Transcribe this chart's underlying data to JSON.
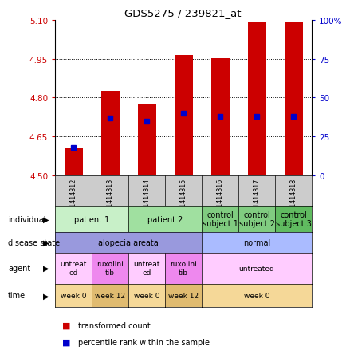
{
  "title": "GDS5275 / 239821_at",
  "samples": [
    "GSM1414312",
    "GSM1414313",
    "GSM1414314",
    "GSM1414315",
    "GSM1414316",
    "GSM1414317",
    "GSM1414318"
  ],
  "bar_values": [
    4.605,
    4.825,
    4.775,
    4.965,
    4.952,
    5.09,
    5.09
  ],
  "percentile_values": [
    18,
    37,
    35,
    40,
    38,
    38,
    38
  ],
  "ylim_left": [
    4.5,
    5.1
  ],
  "ylim_right": [
    0,
    100
  ],
  "yticks_left": [
    4.5,
    4.65,
    4.8,
    4.95,
    5.1
  ],
  "yticks_right": [
    0,
    25,
    50,
    75,
    100
  ],
  "ytick_right_labels": [
    "0",
    "25",
    "50",
    "75",
    "100%"
  ],
  "bar_color": "#cc0000",
  "percentile_color": "#0000cc",
  "ind_groups": [
    [
      0,
      1,
      "#c8f0c8",
      "patient 1"
    ],
    [
      2,
      3,
      "#a0e0a0",
      "patient 2"
    ],
    [
      4,
      4,
      "#80cc80",
      "control\nsubject 1"
    ],
    [
      5,
      5,
      "#80cc80",
      "control\nsubject 2"
    ],
    [
      6,
      6,
      "#60bb60",
      "control\nsubject 3"
    ]
  ],
  "dis_groups": [
    [
      0,
      3,
      "#9999dd",
      "alopecia areata"
    ],
    [
      4,
      6,
      "#aabbff",
      "normal"
    ]
  ],
  "age_groups": [
    [
      0,
      0,
      "#ffccff",
      "untreat\ned"
    ],
    [
      1,
      1,
      "#ee88ee",
      "ruxolini\ntib"
    ],
    [
      2,
      2,
      "#ffccff",
      "untreat\ned"
    ],
    [
      3,
      3,
      "#ee88ee",
      "ruxolini\ntib"
    ],
    [
      4,
      6,
      "#ffccff",
      "untreated"
    ]
  ],
  "tim_groups": [
    [
      0,
      0,
      "#f5d898",
      "week 0"
    ],
    [
      1,
      1,
      "#e0bb70",
      "week 12"
    ],
    [
      2,
      2,
      "#f5d898",
      "week 0"
    ],
    [
      3,
      3,
      "#e0bb70",
      "week 12"
    ],
    [
      4,
      6,
      "#f5d898",
      "week 0"
    ]
  ],
  "row_label_names": [
    "individual",
    "disease state",
    "agent",
    "time"
  ],
  "sample_cell_color": "#cccccc",
  "xlabel_color": "#cc0000",
  "ylabel_right_color": "#0000cc"
}
